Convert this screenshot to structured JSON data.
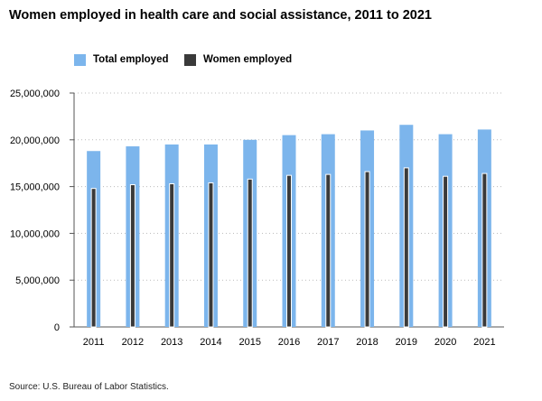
{
  "colors": {
    "total": "#7cb5ec",
    "women": "#3a3a3a",
    "women_outline": "#ffffff",
    "grid": "#bbbbbb",
    "axis": "#555555"
  },
  "chart_data": {
    "type": "bar",
    "title": "Women employed in health care and social assistance, 2011 to 2021",
    "categories": [
      "2011",
      "2012",
      "2013",
      "2014",
      "2015",
      "2016",
      "2017",
      "2018",
      "2019",
      "2020",
      "2021"
    ],
    "series": [
      {
        "name": "Total employed",
        "values": [
          18800000,
          19300000,
          19500000,
          19500000,
          20000000,
          20500000,
          20600000,
          21000000,
          21600000,
          20600000,
          21100000
        ]
      },
      {
        "name": "Women employed",
        "values": [
          14800000,
          15200000,
          15300000,
          15400000,
          15800000,
          16200000,
          16300000,
          16600000,
          17000000,
          16100000,
          16400000
        ]
      }
    ],
    "yticks": [
      "0",
      "5,000,000",
      "10,000,000",
      "15,000,000",
      "20,000,000",
      "25,000,000"
    ],
    "ylim": [
      0,
      25000000
    ],
    "legend_position": "top-left",
    "grid": true,
    "source": "Source: U.S. Bureau of Labor Statistics."
  }
}
